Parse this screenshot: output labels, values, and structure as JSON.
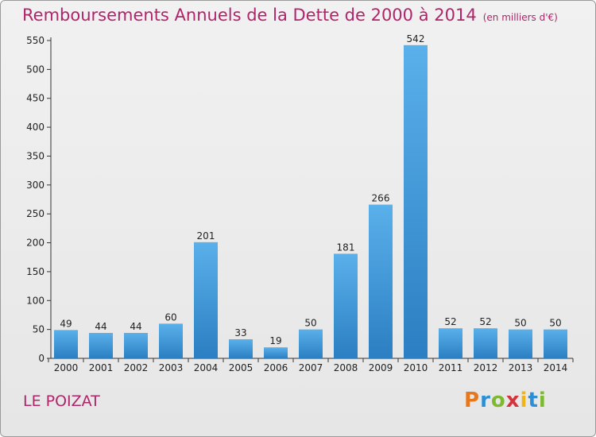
{
  "title": "Remboursements Annuels de la Dette de 2000 à 2014",
  "subtitle": "(en milliers d'€)",
  "commune": "LE POIZAT",
  "logo": {
    "letters": [
      "P",
      "r",
      "o",
      "x",
      "i",
      "t",
      "i"
    ],
    "colors": [
      "#e8761b",
      "#2c8fd6",
      "#7dba2f",
      "#d6323a",
      "#f0b41b",
      "#2c8fd6",
      "#7dba2f"
    ]
  },
  "colors": {
    "title": "#b0246a",
    "bar_top": "#5ab0ea",
    "bar_bottom": "#2b7fc2"
  },
  "chart_data": {
    "type": "bar",
    "title": "Remboursements Annuels de la Dette de 2000 à 2014",
    "subtitle": "(en milliers d'€)",
    "categories": [
      "2000",
      "2001",
      "2002",
      "2003",
      "2004",
      "2005",
      "2006",
      "2007",
      "2008",
      "2009",
      "2010",
      "2011",
      "2012",
      "2013",
      "2014"
    ],
    "values": [
      49,
      44,
      44,
      60,
      201,
      33,
      19,
      50,
      181,
      266,
      542,
      52,
      52,
      50,
      50
    ],
    "yticks": [
      0,
      50,
      100,
      150,
      200,
      250,
      300,
      350,
      400,
      450,
      500,
      550
    ],
    "ylim": [
      0,
      550
    ],
    "grid": false,
    "data_labels": true
  }
}
